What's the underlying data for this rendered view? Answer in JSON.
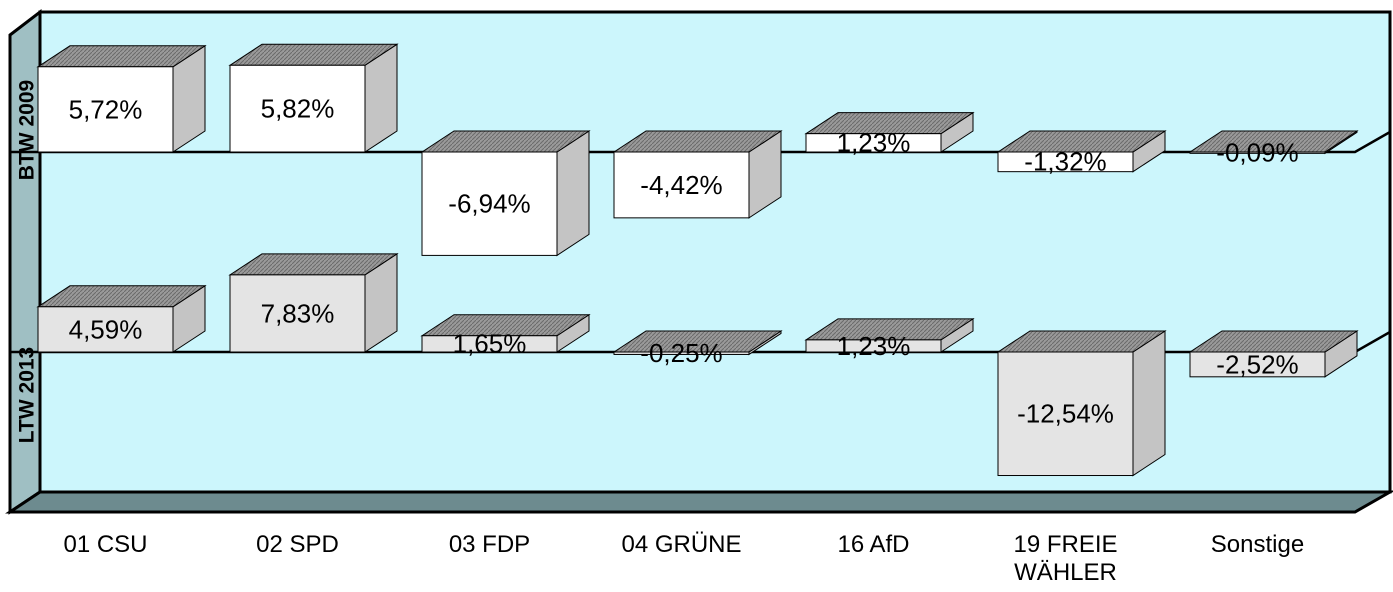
{
  "chart_data": {
    "type": "bar",
    "categories": [
      "01 CSU",
      "02 SPD",
      "03 FDP",
      "04 GRÜNE",
      "16 AfD",
      "19 FREIE WÄHLER",
      "Sonstige"
    ],
    "series": [
      {
        "name": "BTW 2009",
        "color": "#ffffff",
        "values": [
          5.72,
          5.82,
          -6.94,
          -4.42,
          1.23,
          -1.32,
          -0.09
        ],
        "value_labels": [
          "5,72%",
          "5,82%",
          "-6,94%",
          "-4,42%",
          "1,23%",
          "-1,32%",
          "-0,09%"
        ]
      },
      {
        "name": "LTW 2013",
        "color": "#e4e4e4",
        "values": [
          4.59,
          7.83,
          1.65,
          -0.25,
          1.23,
          -12.54,
          -2.52
        ],
        "value_labels": [
          "4,59%",
          "7,83%",
          "1,65%",
          "-0,25%",
          "1,23%",
          "-12,54%",
          "-2,52%"
        ]
      }
    ]
  }
}
